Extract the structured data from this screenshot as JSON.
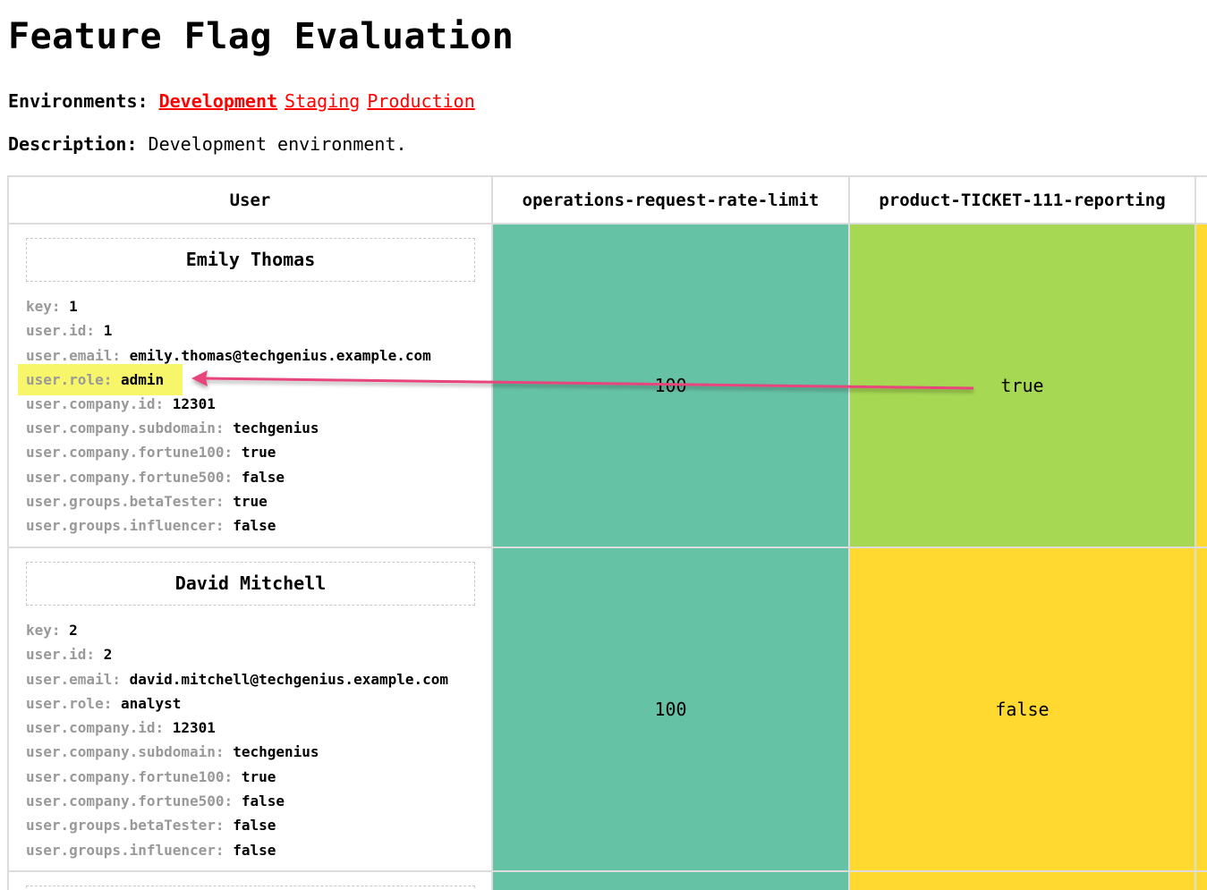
{
  "page": {
    "title": "Feature Flag Evaluation"
  },
  "environments": {
    "label": "Environments:",
    "items": [
      {
        "label": "Development",
        "active": true
      },
      {
        "label": "Staging",
        "active": false
      },
      {
        "label": "Production",
        "active": false
      }
    ]
  },
  "description": {
    "label": "Description:",
    "text": "Development environment."
  },
  "table": {
    "headers": [
      "User",
      "operations-request-rate-limit",
      "product-TICKET-111-reporting"
    ],
    "rows": [
      {
        "name": "Emily Thomas",
        "attributes": [
          {
            "key": "key:",
            "value": "1"
          },
          {
            "key": "user.id:",
            "value": "1"
          },
          {
            "key": "user.email:",
            "value": "emily.thomas@techgenius.example.com"
          },
          {
            "key": "user.role:",
            "value": "admin"
          },
          {
            "key": "user.company.id:",
            "value": "12301"
          },
          {
            "key": "user.company.subdomain:",
            "value": "techgenius"
          },
          {
            "key": "user.company.fortune100:",
            "value": "true"
          },
          {
            "key": "user.company.fortune500:",
            "value": "false"
          },
          {
            "key": "user.groups.betaTester:",
            "value": "true"
          },
          {
            "key": "user.groups.influencer:",
            "value": "false"
          }
        ],
        "values": [
          "100",
          "true"
        ]
      },
      {
        "name": "David Mitchell",
        "attributes": [
          {
            "key": "key:",
            "value": "2"
          },
          {
            "key": "user.id:",
            "value": "2"
          },
          {
            "key": "user.email:",
            "value": "david.mitchell@techgenius.example.com"
          },
          {
            "key": "user.role:",
            "value": "analyst"
          },
          {
            "key": "user.company.id:",
            "value": "12301"
          },
          {
            "key": "user.company.subdomain:",
            "value": "techgenius"
          },
          {
            "key": "user.company.fortune100:",
            "value": "true"
          },
          {
            "key": "user.company.fortune500:",
            "value": "false"
          },
          {
            "key": "user.groups.betaTester:",
            "value": "false"
          },
          {
            "key": "user.groups.influencer:",
            "value": "false"
          }
        ],
        "values": [
          "100",
          "false"
        ]
      }
    ]
  },
  "colors": {
    "link": "#ff0000",
    "teal": "#66c2a5",
    "lime": "#a6d854",
    "yellow": "#ffd92f",
    "highlight": "#f7f56a",
    "annotation_arrow": "#e8457c"
  }
}
